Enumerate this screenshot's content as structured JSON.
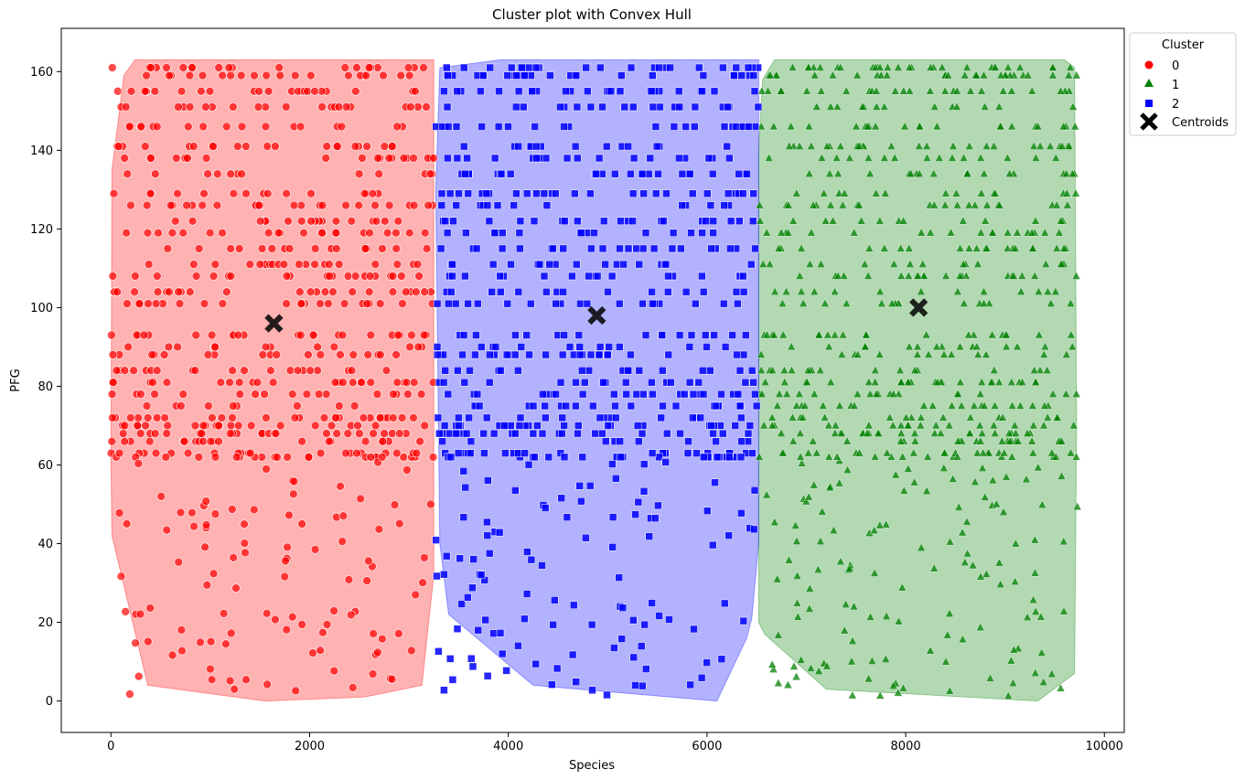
{
  "chart_data": {
    "type": "scatter",
    "title": "Cluster plot with Convex Hull",
    "xlabel": "Species",
    "ylabel": "PFG",
    "xlim": [
      -500,
      10200
    ],
    "ylim": [
      -8,
      171
    ],
    "xticks": [
      0,
      2000,
      4000,
      6000,
      8000,
      10000
    ],
    "yticks": [
      0,
      20,
      40,
      60,
      80,
      100,
      120,
      140,
      160
    ],
    "grid": false,
    "legend": {
      "title": "Cluster",
      "placement": "outside top-right"
    },
    "series": [
      {
        "name": "0",
        "marker": "circle",
        "color": "#ff0000",
        "x_range": [
          0,
          3250
        ],
        "hull": [
          [
            0,
            61
          ],
          [
            10,
            42
          ],
          [
            370,
            4
          ],
          [
            1550,
            0
          ],
          [
            2550,
            1
          ],
          [
            3130,
            4
          ],
          [
            3250,
            32
          ],
          [
            3250,
            163
          ],
          [
            240,
            163
          ],
          [
            130,
            159
          ],
          [
            10,
            135
          ]
        ],
        "centroid": [
          1640,
          96
        ]
      },
      {
        "name": "1",
        "marker": "triangle",
        "color": "#008000",
        "x_range": [
          6520,
          9730
        ],
        "hull": [
          [
            6520,
            20
          ],
          [
            6580,
            17
          ],
          [
            7200,
            3
          ],
          [
            9330,
            0
          ],
          [
            9700,
            7
          ],
          [
            9720,
            70
          ],
          [
            9700,
            161
          ],
          [
            9600,
            163
          ],
          [
            6680,
            163
          ],
          [
            6560,
            158
          ],
          [
            6520,
            140
          ]
        ],
        "centroid": [
          8130,
          100
        ]
      },
      {
        "name": "2",
        "marker": "square",
        "color": "#0000ff",
        "x_range": [
          3270,
          6520
        ],
        "hull": [
          [
            3270,
            130
          ],
          [
            3310,
            40
          ],
          [
            3400,
            22
          ],
          [
            4250,
            4
          ],
          [
            6100,
            0
          ],
          [
            6400,
            16
          ],
          [
            6450,
            21
          ],
          [
            6520,
            40
          ],
          [
            6520,
            163
          ],
          [
            3920,
            163
          ],
          [
            3310,
            161
          ]
        ],
        "centroid": [
          4890,
          98
        ]
      }
    ],
    "centroids": {
      "name": "Centroids",
      "marker": "x",
      "color": "#000000"
    }
  }
}
